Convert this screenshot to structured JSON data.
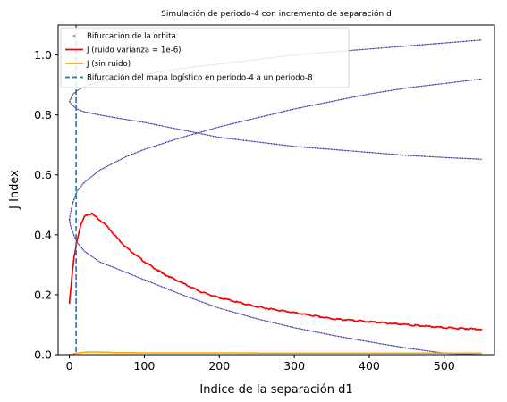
{
  "chart_data": {
    "type": "line",
    "title": "Simulación de periodo-4 con incremento de separación d",
    "xlabel": "Indice de la separación d1",
    "ylabel": "J Index",
    "xlim": [
      -15,
      567
    ],
    "ylim": [
      0.0,
      1.1
    ],
    "x_ticks": [
      "0",
      "100",
      "200",
      "300",
      "400",
      "500"
    ],
    "y_ticks": [
      "0.0",
      "0.2",
      "0.4",
      "0.6",
      "0.8",
      "1.0"
    ],
    "grid": false,
    "legend_position": "top-left",
    "series": [
      {
        "name": "Bifurcación de la orbita",
        "style": "points",
        "color": "#00008b",
        "branches": [
          {
            "x": [
              0,
              2,
              5,
              10,
              20,
              40,
              75,
              100,
              150,
              200,
              250,
              300,
              350,
              400,
              450,
              500,
              550
            ],
            "y": [
              0.45,
              0.48,
              0.51,
              0.545,
              0.575,
              0.615,
              0.66,
              0.685,
              0.725,
              0.76,
              0.79,
              0.82,
              0.845,
              0.87,
              0.89,
              0.905,
              0.92
            ]
          },
          {
            "x": [
              0,
              2,
              5,
              10,
              20,
              40,
              75,
              100,
              150,
              200,
              250,
              300,
              350,
              400,
              450,
              500,
              550
            ],
            "y": [
              0.45,
              0.425,
              0.405,
              0.375,
              0.345,
              0.31,
              0.275,
              0.25,
              0.2,
              0.155,
              0.12,
              0.09,
              0.065,
              0.043,
              0.022,
              0.005,
              0.0
            ]
          },
          {
            "x": [
              0,
              5,
              10,
              20,
              40,
              75,
              100,
              150,
              200,
              250,
              300,
              350,
              400,
              450,
              500,
              550
            ],
            "y": [
              0.845,
              0.87,
              0.88,
              0.895,
              0.91,
              0.925,
              0.935,
              0.955,
              0.97,
              0.985,
              1.0,
              1.01,
              1.02,
              1.03,
              1.04,
              1.05
            ]
          },
          {
            "x": [
              0,
              5,
              10,
              20,
              40,
              75,
              100,
              150,
              200,
              250,
              300,
              350,
              400,
              450,
              500,
              550
            ],
            "y": [
              0.845,
              0.83,
              0.82,
              0.81,
              0.8,
              0.785,
              0.775,
              0.75,
              0.725,
              0.71,
              0.695,
              0.685,
              0.675,
              0.665,
              0.658,
              0.652
            ]
          }
        ]
      },
      {
        "name": "J (ruido varianza = 1e-6)",
        "style": "line",
        "color": "#ff0000",
        "x": [
          0,
          3,
          6,
          10,
          15,
          20,
          25,
          30,
          35,
          40,
          50,
          60,
          75,
          100,
          125,
          150,
          175,
          200,
          250,
          300,
          350,
          400,
          450,
          500,
          550
        ],
        "y": [
          0.17,
          0.25,
          0.32,
          0.38,
          0.43,
          0.46,
          0.47,
          0.47,
          0.46,
          0.45,
          0.43,
          0.4,
          0.36,
          0.31,
          0.27,
          0.24,
          0.21,
          0.19,
          0.16,
          0.14,
          0.12,
          0.11,
          0.1,
          0.09,
          0.085
        ]
      },
      {
        "name": "J (sin ruido)",
        "style": "line",
        "color": "#ffa500",
        "x": [
          0,
          10,
          20,
          30,
          50,
          60,
          100,
          200,
          300,
          400,
          500,
          550
        ],
        "y": [
          0.0,
          0.005,
          0.008,
          0.009,
          0.008,
          0.007,
          0.006,
          0.006,
          0.005,
          0.005,
          0.005,
          0.005
        ]
      },
      {
        "name": "Bifurcación del mapa logístico en periodo-4 a un periodo-8",
        "style": "vline",
        "color": "#1f77b4",
        "x_value": 9
      }
    ]
  }
}
